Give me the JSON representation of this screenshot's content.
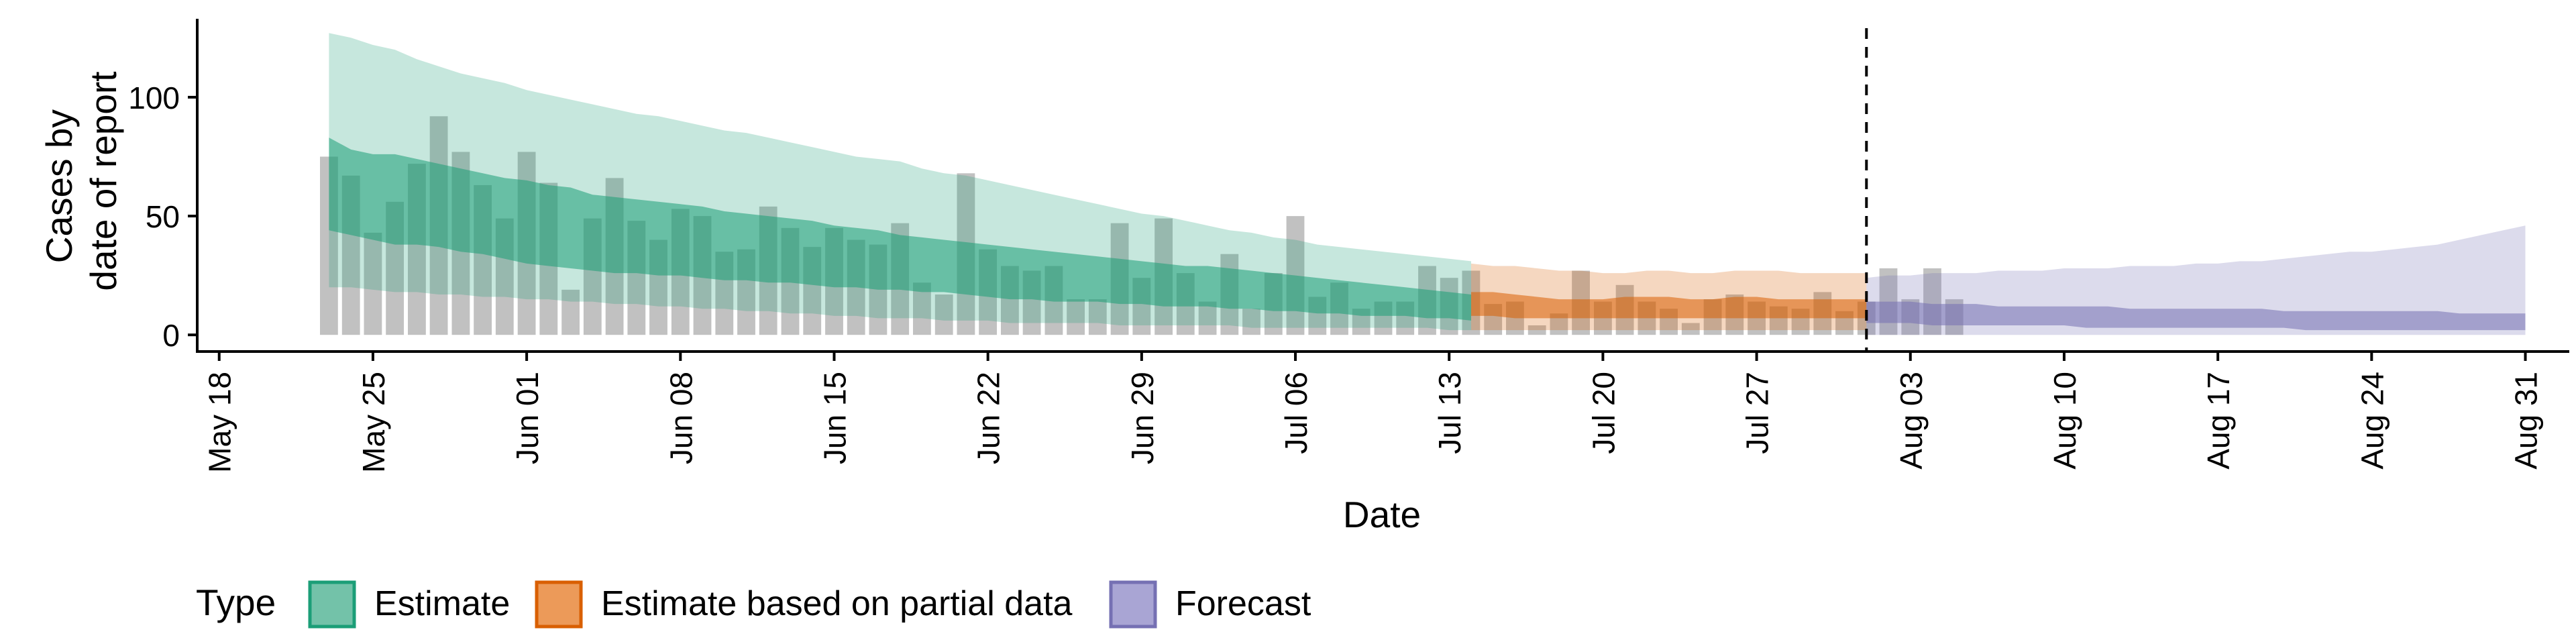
{
  "chart_data": {
    "type": "area",
    "xlabel": "Date",
    "ylabel": [
      "Cases by",
      "date of report"
    ],
    "x_tick_labels": [
      "May 18",
      "May 25",
      "Jun 01",
      "Jun 08",
      "Jun 15",
      "Jun 22",
      "Jun 29",
      "Jul 06",
      "Jul 13",
      "Jul 20",
      "Jul 27",
      "Aug 03",
      "Aug 10",
      "Aug 17",
      "Aug 24",
      "Aug 31"
    ],
    "x_tick_dates": [
      "2020-05-18",
      "2020-05-25",
      "2020-06-01",
      "2020-06-08",
      "2020-06-15",
      "2020-06-22",
      "2020-06-29",
      "2020-07-06",
      "2020-07-13",
      "2020-07-20",
      "2020-07-27",
      "2020-08-03",
      "2020-08-10",
      "2020-08-17",
      "2020-08-24",
      "2020-08-31"
    ],
    "y_ticks": [
      0,
      50,
      100
    ],
    "ylim": [
      -7,
      133
    ],
    "xlim": [
      "2020-05-17",
      "2020-09-02"
    ],
    "forecast_line_date": "2020-08-01",
    "grid": false,
    "legend": {
      "title": "Type",
      "position": "bottom",
      "entries": [
        "Estimate",
        "Estimate based on partial data",
        "Forecast"
      ]
    },
    "colors": {
      "Estimate": "#1b9e77",
      "Estimate based on partial data": "#d95f02",
      "Forecast": "#7570b3",
      "bars": "#a9a9a9"
    },
    "bars": {
      "start_date": "2020-05-23",
      "values": [
        75,
        67,
        43,
        56,
        72,
        92,
        77,
        63,
        49,
        77,
        64,
        19,
        49,
        66,
        48,
        40,
        53,
        50,
        35,
        36,
        54,
        45,
        37,
        45,
        40,
        38,
        47,
        22,
        17,
        68,
        36,
        29,
        27,
        29,
        15,
        15,
        47,
        24,
        49,
        26,
        14,
        34,
        11,
        26,
        50,
        16,
        22,
        11,
        14,
        14,
        29,
        24,
        27,
        13,
        14,
        4,
        9,
        27,
        14,
        21,
        14,
        11,
        5,
        15,
        17,
        14,
        12,
        11,
        18,
        10,
        14,
        28,
        15,
        28,
        15
      ]
    },
    "series": [
      {
        "name": "Estimate",
        "x_start": "2020-05-23",
        "x_end": "2020-07-14",
        "outer_lower": [
          20,
          20,
          19,
          18,
          18,
          17,
          17,
          16,
          16,
          15,
          15,
          14,
          14,
          13,
          13,
          12,
          12,
          11,
          11,
          10,
          10,
          9,
          9,
          8,
          8,
          7,
          7,
          7,
          6,
          6,
          6,
          5,
          5,
          5,
          5,
          5,
          4,
          4,
          4,
          4,
          4,
          4,
          3,
          3,
          3,
          3,
          3,
          3,
          3,
          3,
          3,
          2,
          2
        ],
        "inner_lower": [
          44,
          42,
          40,
          38,
          38,
          37,
          35,
          34,
          32,
          30,
          29,
          28,
          27,
          26,
          26,
          25,
          25,
          24,
          23,
          23,
          22,
          22,
          21,
          20,
          20,
          19,
          19,
          18,
          18,
          17,
          16,
          15,
          15,
          14,
          14,
          14,
          13,
          13,
          12,
          12,
          12,
          11,
          11,
          10,
          10,
          9,
          9,
          8,
          8,
          8,
          7,
          7,
          6
        ],
        "inner_upper": [
          83,
          78,
          76,
          76,
          74,
          72,
          70,
          68,
          66,
          65,
          63,
          62,
          59,
          58,
          57,
          56,
          55,
          54,
          52,
          51,
          50,
          49,
          48,
          46,
          45,
          44,
          42,
          41,
          40,
          39,
          38,
          37,
          36,
          35,
          34,
          33,
          32,
          31,
          30,
          29,
          29,
          28,
          27,
          26,
          25,
          24,
          23,
          22,
          21,
          20,
          19,
          18,
          17
        ],
        "outer_upper": [
          127,
          125,
          122,
          120,
          116,
          113,
          110,
          108,
          106,
          103,
          101,
          99,
          97,
          95,
          93,
          92,
          90,
          88,
          86,
          85,
          83,
          81,
          79,
          77,
          75,
          74,
          73,
          70,
          68,
          67,
          65,
          63,
          61,
          59,
          57,
          55,
          53,
          51,
          50,
          48,
          46,
          44,
          43,
          41,
          40,
          38,
          37,
          36,
          35,
          34,
          33,
          32,
          31
        ]
      },
      {
        "name": "Estimate based on partial data",
        "x_start": "2020-07-14",
        "x_end": "2020-08-01",
        "outer_lower": [
          2,
          2,
          2,
          2,
          2,
          2,
          2,
          2,
          2,
          2,
          2,
          2,
          2,
          2,
          2,
          2,
          2,
          2,
          2
        ],
        "inner_lower": [
          8,
          8,
          7,
          7,
          7,
          7,
          7,
          7,
          7,
          7,
          7,
          7,
          7,
          7,
          7,
          7,
          7,
          7,
          7
        ],
        "inner_upper": [
          18,
          18,
          17,
          16,
          15,
          15,
          15,
          16,
          16,
          16,
          15,
          15,
          16,
          16,
          15,
          15,
          15,
          15,
          15
        ],
        "outer_upper": [
          30,
          29,
          29,
          28,
          27,
          27,
          26,
          26,
          27,
          27,
          26,
          26,
          27,
          27,
          27,
          26,
          26,
          26,
          26
        ]
      },
      {
        "name": "Forecast",
        "x_start": "2020-08-01",
        "x_end": "2020-08-31",
        "outer_lower": [
          0,
          0,
          0,
          0,
          0,
          0,
          0,
          0,
          0,
          0,
          0,
          0,
          0,
          0,
          0,
          0,
          0,
          0,
          0,
          0,
          0,
          0,
          0,
          0,
          0,
          0,
          0,
          0,
          0,
          0,
          0
        ],
        "inner_lower": [
          5,
          5,
          5,
          4,
          4,
          4,
          4,
          4,
          4,
          4,
          3,
          3,
          3,
          3,
          3,
          3,
          3,
          3,
          3,
          3,
          2,
          2,
          2,
          2,
          2,
          2,
          2,
          2,
          2,
          2,
          2
        ],
        "inner_upper": [
          14,
          14,
          14,
          13,
          13,
          13,
          12,
          12,
          12,
          12,
          12,
          12,
          11,
          11,
          11,
          11,
          11,
          11,
          11,
          10,
          10,
          10,
          10,
          10,
          10,
          10,
          10,
          9,
          9,
          9,
          9
        ],
        "outer_upper": [
          24,
          25,
          25,
          26,
          26,
          26,
          27,
          27,
          27,
          28,
          28,
          28,
          29,
          29,
          29,
          30,
          30,
          31,
          31,
          32,
          33,
          34,
          35,
          35,
          36,
          37,
          38,
          40,
          42,
          44,
          46
        ]
      }
    ]
  }
}
